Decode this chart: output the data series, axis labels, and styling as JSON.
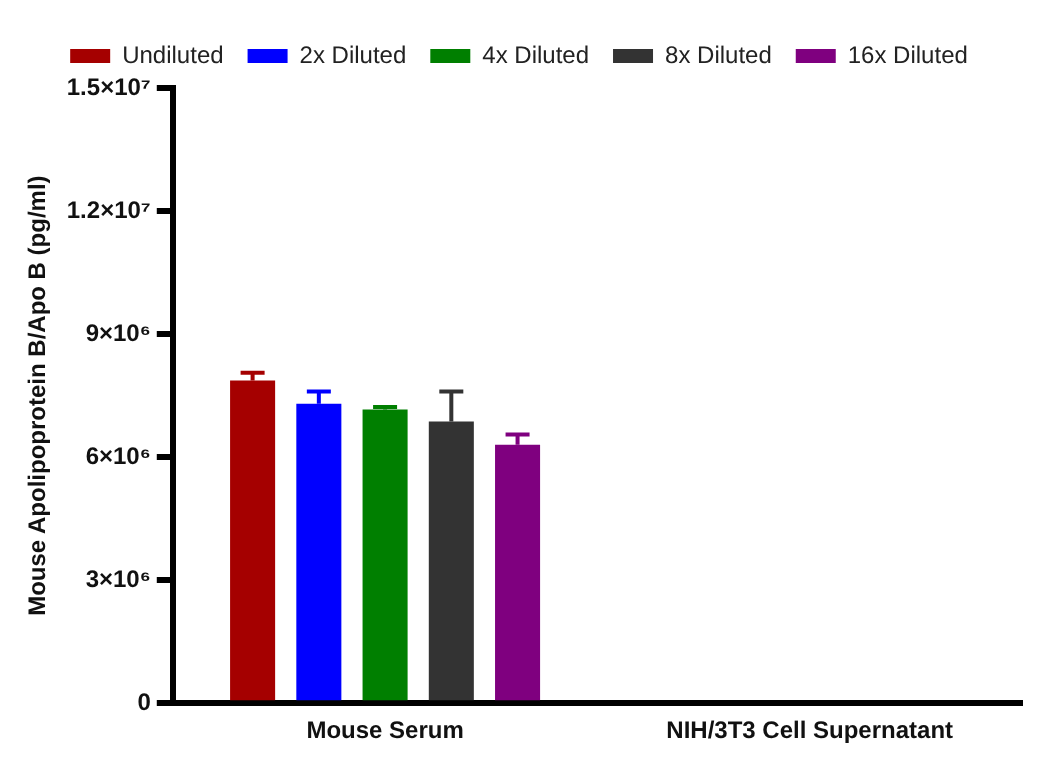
{
  "chart_data": {
    "type": "bar",
    "ylabel": "Mouse Apolipoprotein B/Apo B (pg/ml)",
    "categories": [
      "Mouse Serum",
      "NIH/3T3 Cell Supernatant"
    ],
    "series": [
      {
        "name": "Undiluted",
        "color": "#a50000",
        "values": [
          7870000,
          null
        ],
        "errors": [
          [
            7870000,
            8060000
          ],
          null
        ]
      },
      {
        "name": "2x Diluted",
        "color": "#0000ff",
        "values": [
          7300000,
          null
        ],
        "errors": [
          [
            7300000,
            7600000
          ],
          null
        ]
      },
      {
        "name": "4x Diluted",
        "color": "#007f00",
        "values": [
          7160000,
          null
        ],
        "errors": [
          [
            7160000,
            7220000
          ],
          null
        ]
      },
      {
        "name": "8x Diluted",
        "color": "#333333",
        "values": [
          6870000,
          null
        ],
        "errors": [
          [
            6870000,
            7600000
          ],
          null
        ]
      },
      {
        "name": "16x Diluted",
        "color": "#7f007f",
        "values": [
          6300000,
          null
        ],
        "errors": [
          [
            6300000,
            6550000
          ],
          null
        ]
      }
    ],
    "ylim": [
      0,
      15000000
    ],
    "yticks": [
      0,
      {
        "value": 3000000,
        "label": "3×10⁶"
      },
      {
        "value": 6000000,
        "label": "6×10⁶"
      },
      {
        "value": 9000000,
        "label": "9×10⁶"
      },
      {
        "value": 12000000,
        "label": "1.2×10⁷"
      },
      {
        "value": 15000000,
        "label": "1.5×10⁷"
      }
    ],
    "grid": false,
    "legend": "top"
  }
}
